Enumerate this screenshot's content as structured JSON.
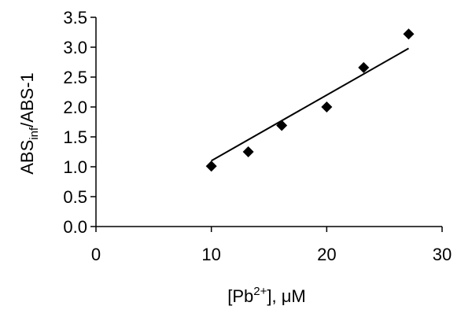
{
  "chart_data": {
    "type": "scatter",
    "xlabel": {
      "prefix": "[Pb",
      "sup": "2+",
      "suffix": "], μM"
    },
    "ylabel": {
      "prefix": "ABS",
      "sub": "inf",
      "suffix": "/ABS-1"
    },
    "xlim": [
      0,
      30
    ],
    "ylim": [
      0,
      3.5
    ],
    "x_ticks": [
      "0",
      "10",
      "20",
      "30"
    ],
    "y_ticks": [
      "0.0",
      "0.5",
      "1.0",
      "1.5",
      "2.0",
      "2.5",
      "3.0",
      "3.5"
    ],
    "grid": false,
    "legend": "none",
    "marker": "diamond",
    "series": [
      {
        "x": [
          10.0,
          13.2,
          16.1,
          20.0,
          23.2,
          27.1
        ],
        "y": [
          1.01,
          1.25,
          1.69,
          2.0,
          2.66,
          3.22
        ]
      }
    ],
    "trendline": {
      "type": "linear",
      "x": [
        10.0,
        27.1
      ],
      "y": [
        1.1,
        2.98
      ]
    }
  }
}
